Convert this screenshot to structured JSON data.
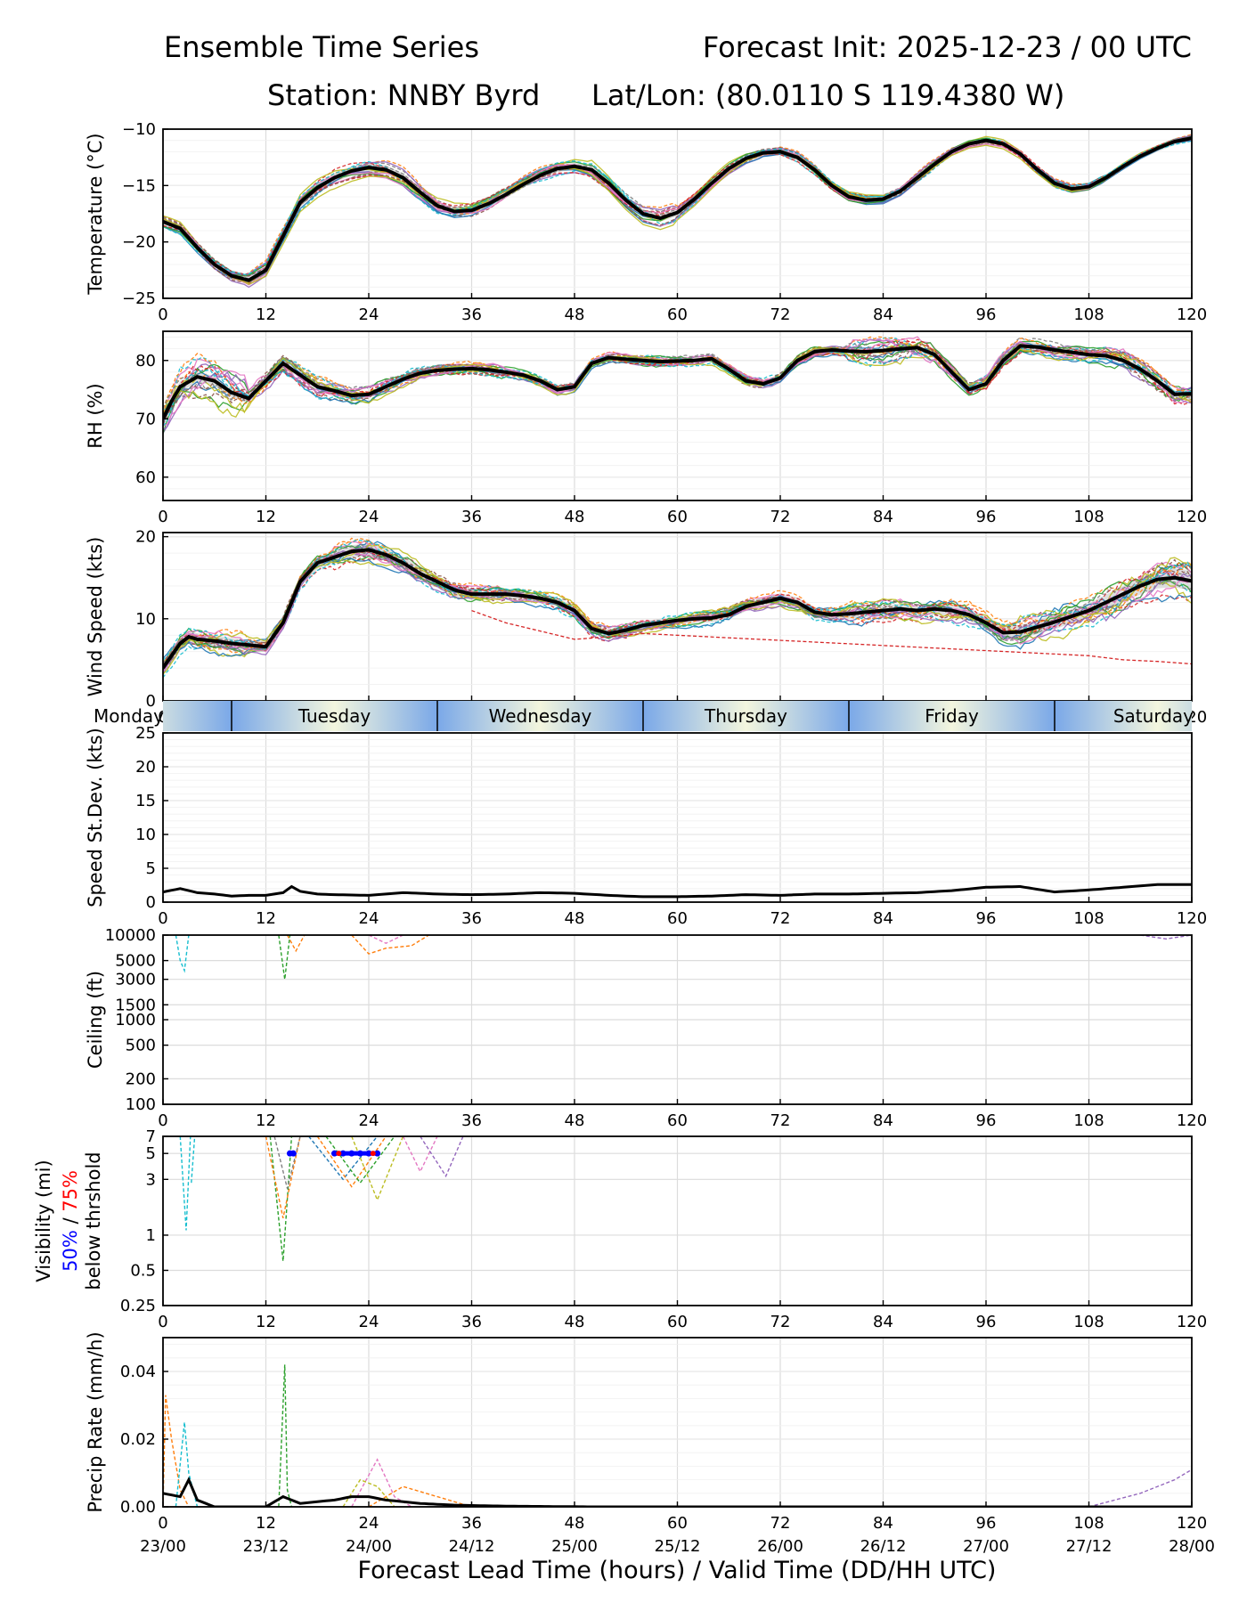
{
  "header": {
    "title": "Ensemble Time Series",
    "init": "Forecast Init: 2025-12-23 / 00 UTC",
    "station": "Station: NNBY Byrd",
    "latlon": "Lat/Lon: (80.0110 S 119.4380 W)"
  },
  "x_axis": {
    "label": "Forecast Lead Time (hours) / Valid Time (DD/HH UTC)",
    "range": [
      0,
      120
    ],
    "ticks": [
      0,
      12,
      24,
      36,
      48,
      60,
      72,
      84,
      96,
      108,
      120
    ],
    "valid_times": [
      "23/00",
      "23/12",
      "24/00",
      "24/12",
      "25/00",
      "25/12",
      "26/00",
      "26/12",
      "27/00",
      "27/12",
      "28/00"
    ]
  },
  "day_bar": {
    "days": [
      {
        "name": "Monday",
        "start": -16,
        "end": 8
      },
      {
        "name": "Tuesday",
        "start": 8,
        "end": 32
      },
      {
        "name": "Wednesday",
        "start": 32,
        "end": 56
      },
      {
        "name": "Thursday",
        "start": 56,
        "end": 80
      },
      {
        "name": "Friday",
        "start": 80,
        "end": 104
      },
      {
        "name": "Saturday",
        "start": 104,
        "end": 128
      }
    ],
    "colors": {
      "edge": "#7aa8e8",
      "mid": "#f3f6de"
    }
  },
  "colors": {
    "mean": "#000000",
    "members": [
      "#1f77b4",
      "#ff7f0e",
      "#2ca02c",
      "#d62728",
      "#9467bd",
      "#8c564b",
      "#e377c2",
      "#7f7f7f",
      "#bcbd22",
      "#17becf"
    ],
    "vis_50": "#0000ff",
    "vis_75": "#ff0000",
    "spread": "#d3d3d3"
  },
  "chart_data": [
    {
      "id": "temperature",
      "type": "line",
      "ylabel": "Temperature (°C)",
      "ylim": [
        -25,
        -10
      ],
      "yticks": [
        -25,
        -20,
        -15,
        -10
      ],
      "ytick_labels": [
        "−25",
        "−20",
        "−15",
        "−10"
      ],
      "scale": "linear",
      "mean": {
        "x": [
          0,
          2,
          4,
          6,
          8,
          10,
          12,
          14,
          16,
          18,
          20,
          22,
          24,
          26,
          28,
          30,
          32,
          34,
          36,
          38,
          40,
          42,
          44,
          46,
          48,
          50,
          52,
          54,
          56,
          58,
          60,
          62,
          64,
          66,
          68,
          70,
          72,
          74,
          76,
          78,
          80,
          82,
          84,
          86,
          88,
          90,
          92,
          94,
          96,
          98,
          100,
          102,
          104,
          106,
          108,
          110,
          112,
          114,
          116,
          118,
          120
        ],
        "y": [
          -18.2,
          -18.8,
          -20.5,
          -22.0,
          -23.0,
          -23.4,
          -22.5,
          -19.5,
          -16.5,
          -15.2,
          -14.3,
          -13.7,
          -13.4,
          -13.6,
          -14.3,
          -15.6,
          -16.8,
          -17.3,
          -17.2,
          -16.6,
          -15.8,
          -14.9,
          -14.1,
          -13.5,
          -13.3,
          -13.6,
          -14.8,
          -16.3,
          -17.5,
          -17.9,
          -17.4,
          -16.2,
          -14.8,
          -13.5,
          -12.6,
          -12.1,
          -12.0,
          -12.5,
          -13.6,
          -15.0,
          -16.0,
          -16.3,
          -16.2,
          -15.5,
          -14.3,
          -13.1,
          -12.0,
          -11.3,
          -11.0,
          -11.3,
          -12.2,
          -13.6,
          -14.8,
          -15.3,
          -15.1,
          -14.3,
          -13.3,
          -12.4,
          -11.7,
          -11.1,
          -10.8
        ]
      },
      "member_spread": [
        0.6,
        0.8,
        0.9,
        0.8,
        0.7,
        0.9,
        0.6,
        0.5,
        0.5,
        0.4,
        0.4,
        0.3
      ],
      "ensemble_spread": [
        0.3,
        0.4,
        0.4,
        0.3,
        0.3,
        0.3,
        0.3,
        0.3,
        0.3,
        0.3,
        0.3
      ]
    },
    {
      "id": "rh",
      "type": "line",
      "ylabel": "RH (%)",
      "ylim": [
        56,
        85
      ],
      "yticks": [
        60,
        70,
        80
      ],
      "ytick_labels": [
        "60",
        "70",
        "80"
      ],
      "scale": "linear",
      "mean": {
        "x": [
          0,
          1,
          2,
          4,
          6,
          8,
          10,
          12,
          14,
          16,
          18,
          20,
          22,
          24,
          26,
          28,
          30,
          32,
          34,
          36,
          38,
          40,
          42,
          44,
          46,
          48,
          50,
          52,
          54,
          56,
          58,
          60,
          62,
          64,
          66,
          68,
          70,
          72,
          74,
          76,
          78,
          80,
          82,
          84,
          86,
          88,
          90,
          92,
          94,
          96,
          98,
          100,
          102,
          104,
          106,
          108,
          110,
          112,
          114,
          116,
          118,
          120
        ],
        "y": [
          70.0,
          73.0,
          75.5,
          77.2,
          76.5,
          74.5,
          73.5,
          76.5,
          79.5,
          77.5,
          75.5,
          74.8,
          74.0,
          74.2,
          75.5,
          76.8,
          77.8,
          78.3,
          78.5,
          78.6,
          78.4,
          78.0,
          77.5,
          76.5,
          75.0,
          75.5,
          79.5,
          80.5,
          80.2,
          80.0,
          79.8,
          79.9,
          80.0,
          80.3,
          78.5,
          76.5,
          76.0,
          77.0,
          80.0,
          81.5,
          81.8,
          81.6,
          81.5,
          81.7,
          82.0,
          82.2,
          81.0,
          78.0,
          75.0,
          76.0,
          80.0,
          82.5,
          82.3,
          81.8,
          81.4,
          81.0,
          80.8,
          80.0,
          78.5,
          76.5,
          74.2,
          74.3
        ]
      },
      "member_spread": [
        4.0,
        2.0,
        1.5,
        1.2,
        1.0,
        1.0,
        1.0,
        1.0,
        2.5,
        1.5,
        1.5,
        2.0
      ],
      "ensemble_spread": [
        1.0,
        0.6,
        0.5,
        0.4,
        0.5,
        0.4,
        0.4,
        0.4,
        0.8,
        0.5,
        0.6
      ]
    },
    {
      "id": "wind",
      "type": "line",
      "ylabel": "Wind Speed (kts)",
      "ylim": [
        0,
        20.5
      ],
      "yticks": [
        0,
        10,
        20
      ],
      "ytick_labels": [
        "0",
        "10",
        "20"
      ],
      "scale": "linear",
      "mean": {
        "x": [
          0,
          1,
          2,
          3,
          4,
          6,
          8,
          10,
          12,
          14,
          16,
          18,
          20,
          22,
          24,
          26,
          28,
          30,
          32,
          34,
          36,
          38,
          40,
          42,
          44,
          46,
          48,
          50,
          52,
          54,
          56,
          58,
          60,
          62,
          64,
          66,
          68,
          70,
          72,
          74,
          76,
          78,
          80,
          82,
          84,
          86,
          88,
          90,
          92,
          94,
          96,
          98,
          100,
          102,
          104,
          106,
          108,
          110,
          112,
          114,
          116,
          118,
          120
        ],
        "y": [
          4.0,
          5.5,
          7.0,
          7.8,
          7.5,
          7.3,
          7.0,
          6.8,
          6.6,
          9.5,
          14.5,
          16.8,
          17.5,
          18.2,
          18.4,
          17.8,
          16.8,
          15.5,
          14.5,
          13.5,
          13.0,
          13.0,
          13.0,
          12.8,
          12.5,
          12.0,
          11.0,
          8.8,
          8.2,
          8.6,
          9.2,
          9.5,
          9.8,
          10.0,
          10.1,
          10.5,
          11.5,
          12.0,
          12.5,
          12.0,
          10.8,
          10.5,
          10.6,
          10.8,
          11.0,
          11.2,
          11.0,
          11.2,
          11.0,
          10.5,
          9.5,
          8.3,
          8.4,
          9.0,
          9.6,
          10.3,
          11.0,
          12.0,
          13.0,
          14.0,
          14.8,
          15.0,
          14.6
        ]
      },
      "member_spread": [
        1.5,
        1.0,
        1.5,
        1.2,
        1.0,
        1.0,
        1.0,
        1.0,
        1.5,
        1.5,
        2.0,
        2.5
      ],
      "ensemble_spread": [
        0.8,
        0.6,
        0.8,
        0.7,
        0.5,
        0.5,
        0.6,
        0.6,
        0.8,
        0.9,
        1.2
      ],
      "outlier": {
        "name": "red member",
        "x": [
          36,
          40,
          44,
          48,
          52,
          56,
          108,
          112,
          116,
          120
        ],
        "y": [
          11.0,
          9.5,
          8.5,
          7.5,
          7.8,
          8.2,
          5.5,
          5.0,
          4.8,
          4.5
        ]
      }
    },
    {
      "id": "speed_sd",
      "type": "line",
      "ylabel": "Speed St.Dev. (kts)",
      "ylim": [
        0,
        25
      ],
      "yticks": [
        0,
        5,
        10,
        15,
        20,
        25
      ],
      "ytick_labels": [
        "0",
        "5",
        "10",
        "15",
        "20",
        "25"
      ],
      "scale": "linear",
      "mean": {
        "x": [
          0,
          2,
          4,
          6,
          8,
          10,
          12,
          14,
          15,
          16,
          18,
          20,
          24,
          28,
          32,
          36,
          40,
          44,
          48,
          52,
          56,
          60,
          64,
          68,
          72,
          76,
          80,
          84,
          88,
          92,
          96,
          100,
          104,
          108,
          112,
          116,
          120
        ],
        "y": [
          1.5,
          2.0,
          1.4,
          1.2,
          0.9,
          1.0,
          1.0,
          1.4,
          2.3,
          1.6,
          1.2,
          1.1,
          1.0,
          1.4,
          1.2,
          1.1,
          1.2,
          1.4,
          1.3,
          1.0,
          0.8,
          0.8,
          0.9,
          1.1,
          1.0,
          1.2,
          1.2,
          1.3,
          1.4,
          1.7,
          2.2,
          2.3,
          1.5,
          1.8,
          2.2,
          2.6,
          2.6
        ]
      }
    },
    {
      "id": "ceiling",
      "type": "line",
      "ylabel": "Ceiling (ft)",
      "ylim": [
        100,
        10000
      ],
      "scale": "log",
      "yticks": [
        100,
        200,
        500,
        1000,
        1500,
        3000,
        5000,
        10000
      ],
      "ytick_labels": [
        "100",
        "200",
        "500",
        "1000",
        "1500",
        "3000",
        "5000",
        "10000"
      ],
      "members": [
        {
          "color_index": 9,
          "x": [
            1.5,
            2.0,
            2.5,
            3.0
          ],
          "y": [
            10000,
            5000,
            3800,
            10000
          ]
        },
        {
          "color_index": 2,
          "x": [
            13.5,
            14.2,
            14.8
          ],
          "y": [
            10000,
            3000,
            10000
          ]
        },
        {
          "color_index": 1,
          "x": [
            14.5,
            15.5,
            16.5
          ],
          "y": [
            10000,
            6500,
            10000
          ]
        },
        {
          "color_index": 1,
          "x": [
            22,
            24,
            26,
            29,
            31
          ],
          "y": [
            10000,
            6000,
            7000,
            7500,
            10000
          ]
        },
        {
          "color_index": 6,
          "x": [
            24,
            26,
            28
          ],
          "y": [
            10000,
            8000,
            10000
          ]
        },
        {
          "color_index": 4,
          "x": [
            114,
            117,
            120
          ],
          "y": [
            10000,
            9000,
            10000
          ]
        }
      ]
    },
    {
      "id": "visibility",
      "type": "line",
      "ylabel": "Visibility (mi)",
      "ylim": [
        0.25,
        7
      ],
      "scale": "log",
      "ylabel2": "below thrshold",
      "label_50": "50%",
      "label_sep": " / ",
      "label_75": "75%",
      "yticks": [
        0.25,
        0.5,
        1,
        3,
        5,
        7
      ],
      "ytick_labels": [
        "0.25",
        "0.5",
        "1",
        "3",
        "5",
        "7"
      ],
      "members": [
        {
          "color_index": 9,
          "x": [
            2.0,
            2.7,
            3.2
          ],
          "y": [
            7,
            1.1,
            7
          ]
        },
        {
          "color_index": 9,
          "x": [
            3.3,
            3.7
          ],
          "y": [
            2.8,
            7
          ]
        },
        {
          "color_index": 2,
          "x": [
            12.5,
            14.0,
            15.0
          ],
          "y": [
            7,
            0.6,
            7
          ]
        },
        {
          "color_index": 1,
          "x": [
            12.0,
            14.0,
            16.0
          ],
          "y": [
            7,
            1.4,
            7
          ]
        },
        {
          "color_index": 7,
          "x": [
            13.0,
            14.5,
            16.0
          ],
          "y": [
            7,
            2.5,
            7
          ]
        },
        {
          "color_index": 0,
          "x": [
            17,
            21,
            25
          ],
          "y": [
            7,
            3.0,
            7
          ]
        },
        {
          "color_index": 1,
          "x": [
            18,
            22,
            26
          ],
          "y": [
            7,
            2.6,
            7
          ]
        },
        {
          "color_index": 2,
          "x": [
            19,
            23,
            27
          ],
          "y": [
            7,
            2.8,
            7
          ]
        },
        {
          "color_index": 8,
          "x": [
            22,
            25,
            28
          ],
          "y": [
            7,
            2.0,
            7
          ]
        },
        {
          "color_index": 6,
          "x": [
            28,
            30,
            32
          ],
          "y": [
            7,
            3.5,
            7
          ]
        },
        {
          "color_index": 4,
          "x": [
            30,
            33,
            35
          ],
          "y": [
            7,
            3.2,
            7
          ]
        }
      ],
      "threshold_50": {
        "x": [
          14.8,
          15.2,
          20.0,
          21.0,
          22.0,
          23.0,
          24.0,
          25.0
        ],
        "y": [
          5,
          5,
          5,
          5,
          5,
          5,
          5,
          5
        ]
      },
      "threshold_75": {
        "x": [
          20.5,
          24.5
        ],
        "y": [
          5,
          5
        ]
      }
    },
    {
      "id": "precip",
      "type": "line",
      "ylabel": "Precip Rate (mm/h)",
      "ylim": [
        0,
        0.05
      ],
      "yticks": [
        0,
        0.02,
        0.04
      ],
      "ytick_labels": [
        "0.00",
        "0.02",
        "0.04"
      ],
      "scale": "linear",
      "members": [
        {
          "color_index": 1,
          "x": [
            0,
            0.3,
            1,
            2,
            3
          ],
          "y": [
            0.0,
            0.033,
            0.02,
            0.005,
            0.0
          ]
        },
        {
          "color_index": 9,
          "x": [
            1.5,
            2.5,
            3.0,
            4.0
          ],
          "y": [
            0.0,
            0.025,
            0.01,
            0.0
          ]
        },
        {
          "color_index": 2,
          "x": [
            13.5,
            14.2,
            14.5,
            15.0
          ],
          "y": [
            0.0,
            0.042,
            0.005,
            0.0
          ]
        },
        {
          "color_index": 6,
          "x": [
            22,
            25,
            27,
            29
          ],
          "y": [
            0.0,
            0.014,
            0.003,
            0.0
          ]
        },
        {
          "color_index": 8,
          "x": [
            21,
            23,
            25,
            27
          ],
          "y": [
            0.0,
            0.008,
            0.006,
            0.0
          ]
        },
        {
          "color_index": 1,
          "x": [
            24,
            28,
            32,
            36
          ],
          "y": [
            0.0,
            0.006,
            0.003,
            0.0
          ]
        },
        {
          "color_index": 4,
          "x": [
            108,
            114,
            118,
            120
          ],
          "y": [
            0.0,
            0.004,
            0.008,
            0.011
          ]
        }
      ],
      "mean": {
        "x": [
          0,
          2,
          3,
          4,
          6,
          10,
          12,
          14,
          16,
          18,
          20,
          22,
          24,
          26,
          28,
          30,
          34,
          40,
          50,
          120
        ],
        "y": [
          0.004,
          0.003,
          0.008,
          0.002,
          0.0,
          0.0,
          0.0,
          0.003,
          0.001,
          0.0015,
          0.002,
          0.003,
          0.003,
          0.002,
          0.0015,
          0.001,
          0.0005,
          0.0002,
          0.0,
          0.0
        ]
      }
    }
  ]
}
